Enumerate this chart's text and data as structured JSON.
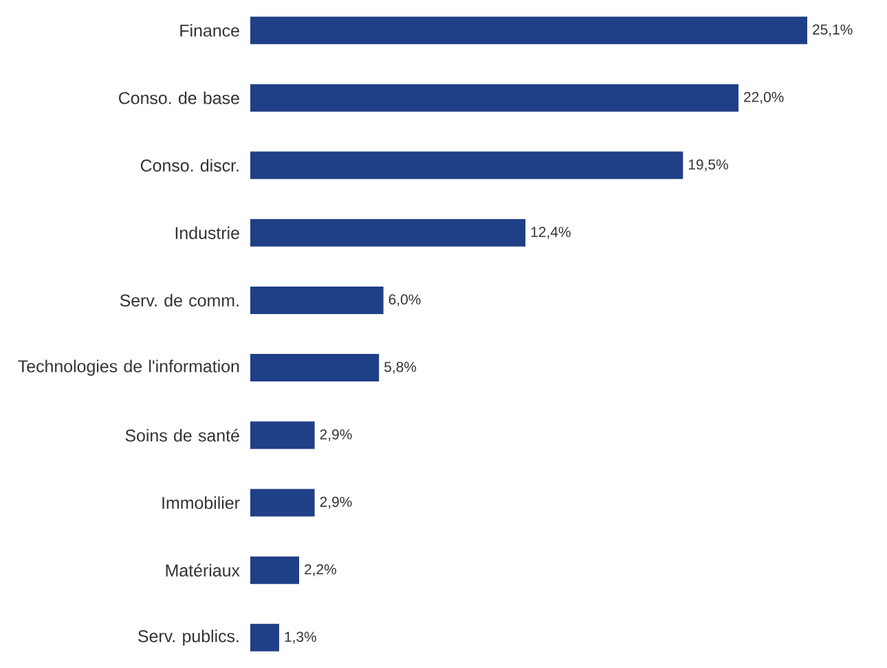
{
  "chart_data": {
    "type": "bar",
    "orientation": "horizontal",
    "categories": [
      "Finance",
      "Conso. de base",
      "Conso. discr.",
      "Industrie",
      "Serv. de comm.",
      "Technologies de l'information",
      "Soins de santé",
      "Immobilier",
      "Matériaux",
      "Serv. publics."
    ],
    "values": [
      25.1,
      22.0,
      19.5,
      12.4,
      6.0,
      5.8,
      2.9,
      2.9,
      2.2,
      1.3
    ],
    "value_labels": [
      "25,1%",
      "22,0%",
      "19,5%",
      "12,4%",
      "6,0%",
      "5,8%",
      "2,9%",
      "2,9%",
      "2,2%",
      "1,3%"
    ],
    "color": "#1f3f86"
  }
}
